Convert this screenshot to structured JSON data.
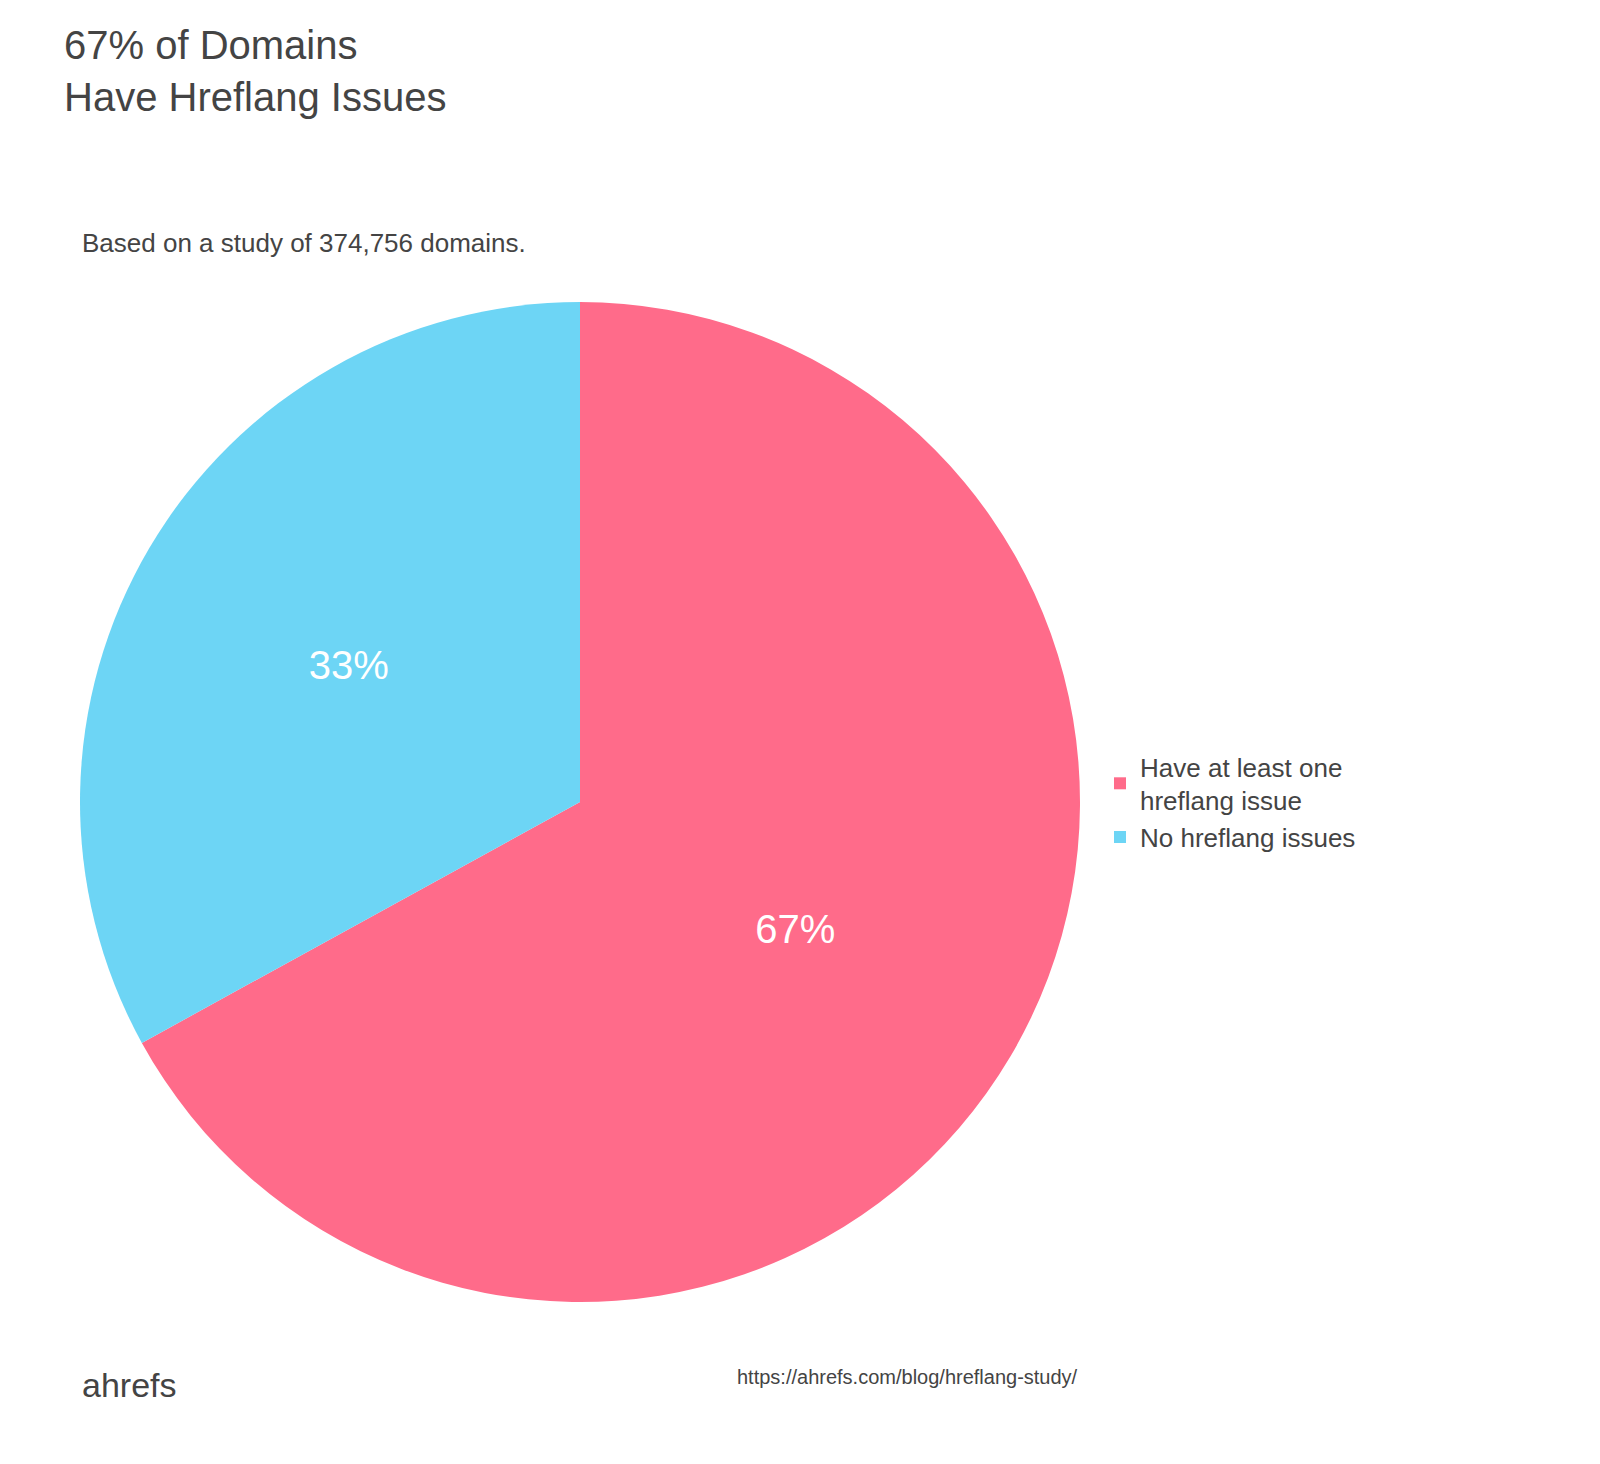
{
  "chart_data": {
    "type": "pie",
    "title": "67% of Domains\nHave Hreflang Issues",
    "subtitle": "Based on a study of 374,756 domains.",
    "categories": [
      "Have at least one\nhreflang issue",
      "No hreflang issues"
    ],
    "values": [
      67,
      33
    ],
    "value_labels": [
      "67%",
      "33%"
    ],
    "colors": [
      "#ff6b8a",
      "#6dd5f5"
    ],
    "data_labels": true,
    "legend": "right",
    "annotations": [
      "ahrefs",
      "https://ahrefs.com/blog/hreflang-study/"
    ]
  }
}
